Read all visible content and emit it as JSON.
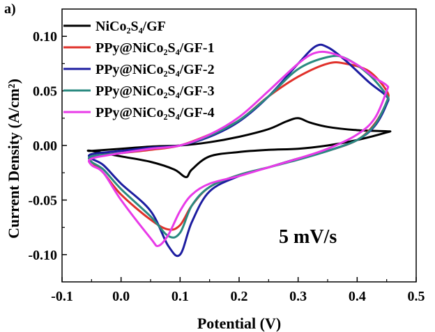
{
  "panel_label": "a)",
  "annotation": "5 mV/s",
  "chart_data": {
    "type": "line",
    "title": "",
    "xlabel": "Potential (V)",
    "ylabel": "Current Density (A/cm²)",
    "xlim": [
      -0.1,
      0.5
    ],
    "ylim": [
      -0.125,
      0.125
    ],
    "xticks": [
      -0.1,
      0.0,
      0.1,
      0.2,
      0.3,
      0.4,
      0.5
    ],
    "xtick_labels": [
      "-0.1",
      "0.0",
      "0.1",
      "0.2",
      "0.3",
      "0.4",
      "0.5"
    ],
    "yticks": [
      -0.1,
      -0.05,
      0.0,
      0.05,
      0.1
    ],
    "ytick_labels": [
      "-0.10",
      "-0.05",
      "0.00",
      "0.05",
      "0.10"
    ],
    "grid": false,
    "legend_position": "top-left",
    "series": [
      {
        "name": "NiCo₂S₄/GF",
        "color": "#000000",
        "x": [
          -0.05,
          0.0,
          0.05,
          0.1,
          0.15,
          0.2,
          0.25,
          0.28,
          0.3,
          0.32,
          0.35,
          0.4,
          0.45,
          0.45,
          0.4,
          0.35,
          0.3,
          0.25,
          0.2,
          0.15,
          0.12,
          0.11,
          0.09,
          0.05,
          0.0,
          -0.05
        ],
        "y": [
          -0.005,
          -0.003,
          -0.001,
          0.0,
          0.003,
          0.008,
          0.015,
          0.022,
          0.025,
          0.021,
          0.017,
          0.014,
          0.013,
          0.012,
          0.005,
          0.0,
          -0.003,
          -0.004,
          -0.006,
          -0.01,
          -0.022,
          -0.029,
          -0.022,
          -0.015,
          -0.01,
          -0.005
        ]
      },
      {
        "name": "PPy@NiCo₂S₄/GF-1",
        "color": "#e0302a",
        "x": [
          -0.05,
          0.0,
          0.05,
          0.1,
          0.15,
          0.2,
          0.25,
          0.3,
          0.35,
          0.38,
          0.42,
          0.45,
          0.45,
          0.43,
          0.4,
          0.35,
          0.3,
          0.25,
          0.2,
          0.15,
          0.12,
          0.1,
          0.08,
          0.05,
          0.0,
          -0.03,
          -0.05
        ],
        "y": [
          -0.01,
          -0.007,
          -0.004,
          0.0,
          0.01,
          0.023,
          0.045,
          0.063,
          0.075,
          0.075,
          0.068,
          0.05,
          0.04,
          0.02,
          0.005,
          -0.005,
          -0.012,
          -0.02,
          -0.027,
          -0.038,
          -0.055,
          -0.073,
          -0.077,
          -0.068,
          -0.045,
          -0.025,
          -0.015
        ]
      },
      {
        "name": "PPy@NiCo₂S₄/GF-2",
        "color": "#1c1ca0",
        "x": [
          -0.05,
          0.0,
          0.05,
          0.1,
          0.15,
          0.2,
          0.25,
          0.3,
          0.33,
          0.35,
          0.38,
          0.42,
          0.45,
          0.45,
          0.43,
          0.4,
          0.35,
          0.3,
          0.25,
          0.2,
          0.15,
          0.12,
          0.1,
          0.08,
          0.05,
          0.0,
          -0.03,
          -0.05
        ],
        "y": [
          -0.008,
          -0.005,
          -0.002,
          0.0,
          0.008,
          0.022,
          0.045,
          0.075,
          0.091,
          0.09,
          0.078,
          0.058,
          0.045,
          0.038,
          0.018,
          0.005,
          -0.005,
          -0.012,
          -0.02,
          -0.028,
          -0.042,
          -0.07,
          -0.1,
          -0.092,
          -0.06,
          -0.035,
          -0.018,
          -0.012
        ]
      },
      {
        "name": "PPy@NiCo₂S₄/GF-3",
        "color": "#2a8a80",
        "x": [
          -0.05,
          0.0,
          0.05,
          0.1,
          0.15,
          0.2,
          0.25,
          0.3,
          0.35,
          0.38,
          0.42,
          0.45,
          0.45,
          0.43,
          0.4,
          0.35,
          0.3,
          0.25,
          0.2,
          0.15,
          0.12,
          0.1,
          0.08,
          0.05,
          0.0,
          -0.03,
          -0.05
        ],
        "y": [
          -0.01,
          -0.007,
          -0.003,
          0.0,
          0.009,
          0.023,
          0.045,
          0.07,
          0.081,
          0.08,
          0.065,
          0.046,
          0.04,
          0.019,
          0.005,
          -0.005,
          -0.013,
          -0.02,
          -0.027,
          -0.038,
          -0.055,
          -0.08,
          -0.083,
          -0.065,
          -0.04,
          -0.022,
          -0.015
        ]
      },
      {
        "name": "PPy@NiCo₂S₄/GF-4",
        "color": "#e83ae8",
        "x": [
          -0.05,
          0.0,
          0.05,
          0.1,
          0.15,
          0.2,
          0.25,
          0.3,
          0.33,
          0.36,
          0.4,
          0.43,
          0.45,
          0.45,
          0.43,
          0.4,
          0.35,
          0.3,
          0.25,
          0.2,
          0.15,
          0.12,
          0.1,
          0.08,
          0.063,
          0.05,
          0.0,
          -0.03,
          -0.05
        ],
        "y": [
          -0.012,
          -0.007,
          -0.003,
          0.0,
          0.01,
          0.026,
          0.05,
          0.075,
          0.085,
          0.084,
          0.074,
          0.062,
          0.055,
          0.05,
          0.025,
          0.01,
          -0.003,
          -0.012,
          -0.02,
          -0.028,
          -0.035,
          -0.045,
          -0.06,
          -0.082,
          -0.092,
          -0.085,
          -0.05,
          -0.025,
          -0.018
        ]
      }
    ]
  }
}
